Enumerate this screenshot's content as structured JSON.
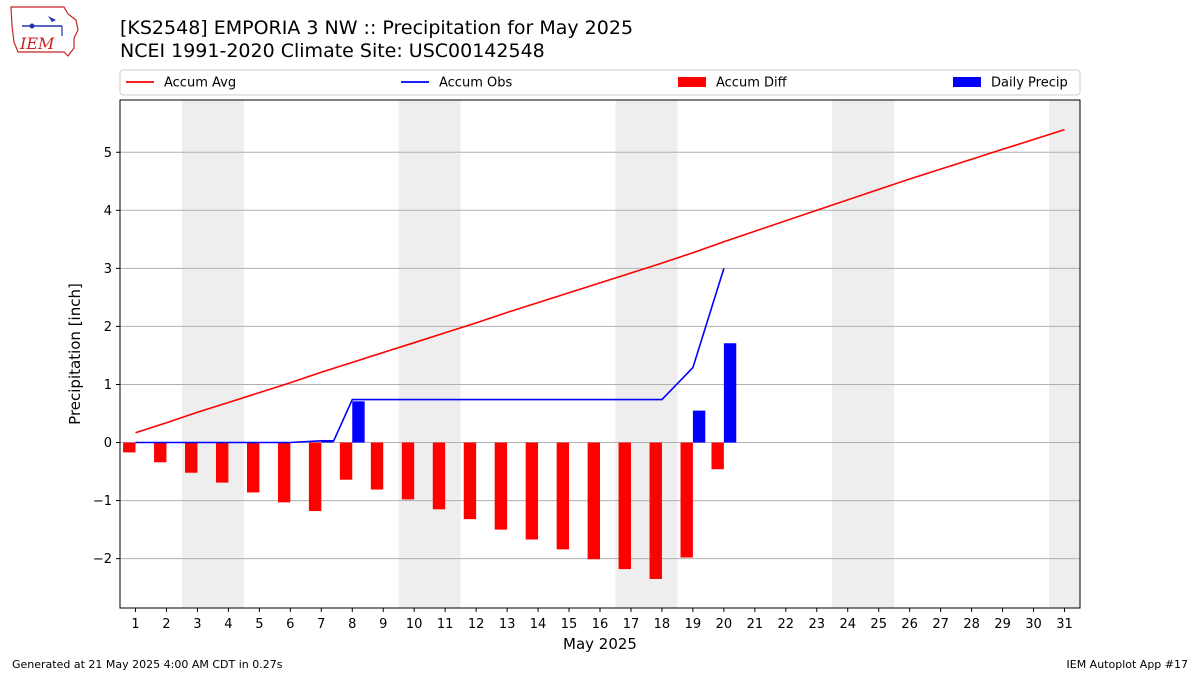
{
  "header": {
    "title_line1": "[KS2548] EMPORIA 3 NW :: Precipitation for May 2025",
    "title_line2": "NCEI 1991-2020 Climate Site: USC00142548",
    "logo_text": "IEM"
  },
  "footer": {
    "left": "Generated at 21 May 2025 4:00 AM CDT in 0.27s",
    "right": "IEM Autoplot App #17"
  },
  "colors": {
    "accum_avg": "#ff0000",
    "accum_obs": "#0000ff",
    "accum_diff": "#ff0000",
    "daily_precip": "#0000ff",
    "weekend_shade": "#eeeeee",
    "grid": "#b0b0b0"
  },
  "chart_data": {
    "type": "bar",
    "xlabel": "May 2025",
    "ylabel": "Precipitation [inch]",
    "xlim": [
      0.5,
      31.5
    ],
    "ylim": [
      -2.85,
      5.9
    ],
    "y_ticks": [
      -2,
      -1,
      0,
      1,
      2,
      3,
      4,
      5
    ],
    "y_tick_labels": [
      "−2",
      "−1",
      "0",
      "1",
      "2",
      "3",
      "4",
      "5"
    ],
    "x_ticks": [
      1,
      2,
      3,
      4,
      5,
      6,
      7,
      8,
      9,
      10,
      11,
      12,
      13,
      14,
      15,
      16,
      17,
      18,
      19,
      20,
      21,
      22,
      23,
      24,
      25,
      26,
      27,
      28,
      29,
      30,
      31
    ],
    "grid": "horizontal",
    "weekend_spans": [
      [
        2.5,
        4.5
      ],
      [
        9.5,
        11.5
      ],
      [
        16.5,
        18.5
      ],
      [
        23.5,
        25.5
      ],
      [
        30.5,
        31.5
      ]
    ],
    "legend": {
      "placement": "top",
      "entries": [
        {
          "label": "Accum Avg",
          "kind": "line",
          "color": "#ff0000"
        },
        {
          "label": "Accum Obs",
          "kind": "line",
          "color": "#0000ff"
        },
        {
          "label": "Accum Diff",
          "kind": "bar",
          "color": "#ff0000"
        },
        {
          "label": "Daily Precip",
          "kind": "bar",
          "color": "#0000ff"
        }
      ]
    },
    "series": [
      {
        "name": "Accum Avg",
        "type": "line",
        "x": [
          1,
          2,
          3,
          4,
          5,
          6,
          7,
          8,
          9,
          10,
          11,
          12,
          13,
          14,
          15,
          16,
          17,
          18,
          19,
          20,
          21,
          22,
          23,
          24,
          25,
          26,
          27,
          28,
          29,
          30,
          31
        ],
        "values": [
          0.17,
          0.34,
          0.52,
          0.69,
          0.86,
          1.03,
          1.21,
          1.38,
          1.55,
          1.72,
          1.89,
          2.06,
          2.24,
          2.41,
          2.58,
          2.75,
          2.92,
          3.09,
          3.27,
          3.46,
          3.64,
          3.82,
          4.0,
          4.18,
          4.36,
          4.54,
          4.71,
          4.88,
          5.05,
          5.22,
          5.39
        ]
      },
      {
        "name": "Accum Obs",
        "type": "line",
        "x": [
          1,
          2,
          3,
          4,
          5,
          6,
          7,
          7.4,
          8,
          9,
          10,
          11,
          12,
          13,
          14,
          15,
          16,
          17,
          18,
          19,
          20
        ],
        "values": [
          0,
          0,
          0,
          0,
          0,
          0,
          0.03,
          0.03,
          0.74,
          0.74,
          0.74,
          0.74,
          0.74,
          0.74,
          0.74,
          0.74,
          0.74,
          0.74,
          0.74,
          1.29,
          3.0
        ]
      },
      {
        "name": "Accum Diff",
        "type": "bar",
        "x": [
          1,
          2,
          3,
          4,
          5,
          6,
          7,
          8,
          9,
          10,
          11,
          12,
          13,
          14,
          15,
          16,
          17,
          18,
          19,
          20
        ],
        "values": [
          -0.17,
          -0.34,
          -0.52,
          -0.69,
          -0.86,
          -1.03,
          -1.18,
          -0.64,
          -0.81,
          -0.98,
          -1.15,
          -1.32,
          -1.5,
          -1.67,
          -1.84,
          -2.01,
          -2.18,
          -2.35,
          -1.98,
          -0.46
        ]
      },
      {
        "name": "Daily Precip",
        "type": "bar",
        "x": [
          7,
          8,
          19,
          20
        ],
        "values": [
          0.03,
          0.71,
          0.55,
          1.71
        ]
      }
    ]
  }
}
